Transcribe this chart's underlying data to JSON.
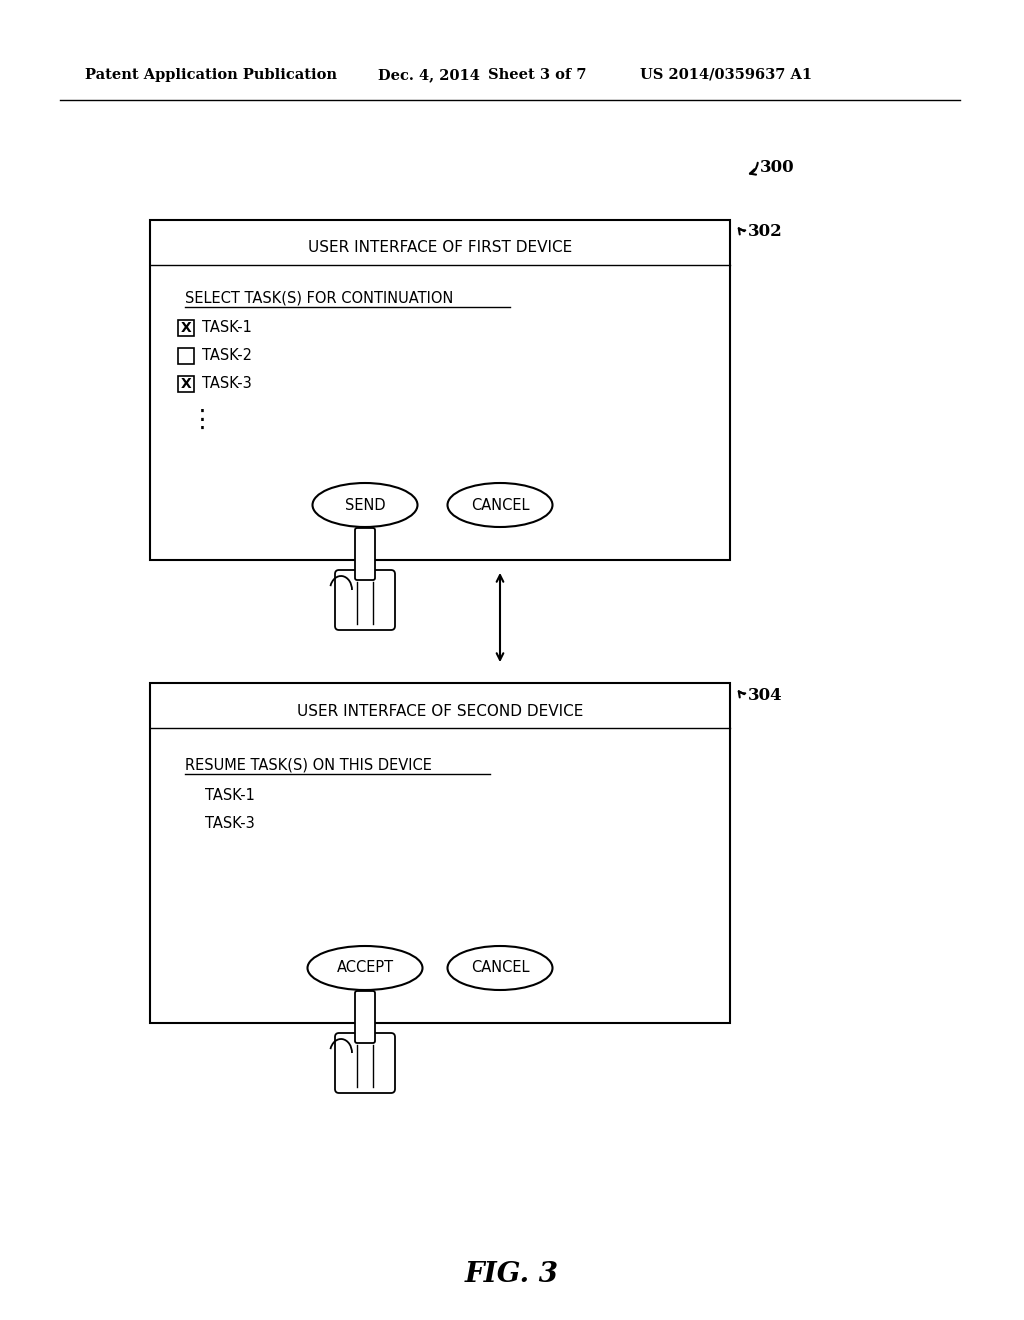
{
  "bg_color": "#ffffff",
  "header_text": "Patent Application Publication",
  "header_date": "Dec. 4, 2014",
  "header_sheet": "Sheet 3 of 7",
  "header_patent": "US 2014/0359637 A1",
  "fig_label": "300",
  "box1_label": "302",
  "box2_label": "304",
  "box1_title": "USER INTERFACE OF FIRST DEVICE",
  "box1_subtitle": "SELECT TASK(S) FOR CONTINUATION",
  "box1_tasks": [
    "TASK-1",
    "TASK-2",
    "TASK-3"
  ],
  "box1_checked": [
    true,
    false,
    true
  ],
  "box1_btn1": "SEND",
  "box1_btn2": "CANCEL",
  "box2_title": "USER INTERFACE OF SECOND DEVICE",
  "box2_subtitle": "RESUME TASK(S) ON THIS DEVICE",
  "box2_tasks": [
    "TASK-1",
    "TASK-3"
  ],
  "box2_btn1": "ACCEPT",
  "box2_btn2": "CANCEL",
  "caption": "FIG. 3"
}
